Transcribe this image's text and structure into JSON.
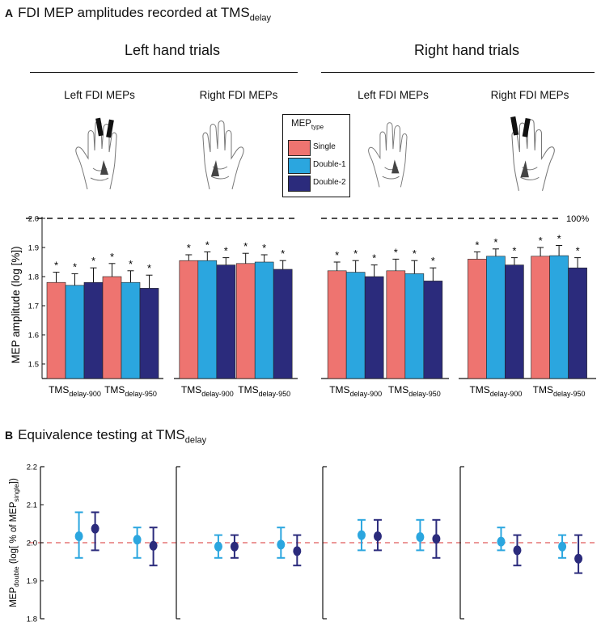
{
  "panelA": {
    "letter": "A",
    "title": "FDI MEP amplitudes recorded at TMS",
    "title_sub": "delay"
  },
  "panelB": {
    "letter": "B",
    "title": "Equivalence testing at TMS",
    "title_sub": "delay"
  },
  "groups": {
    "left": "Left hand trials",
    "right": "Right hand trials"
  },
  "subheads": [
    "Left FDI MEPs",
    "Right FDI MEPs",
    "Left FDI MEPs",
    "Right FDI MEPs"
  ],
  "hand_icons": [
    "left-hand-active-coil-icon",
    "right-hand-icon",
    "left-hand-icon",
    "right-hand-active-coil-icon"
  ],
  "legend": {
    "title": "MEP",
    "title_sub": "type",
    "items": [
      {
        "label": "Single",
        "color": "#ee7470"
      },
      {
        "label": "Double-1",
        "color": "#2ba6df"
      },
      {
        "label": "Double-2",
        "color": "#2b2b7c"
      }
    ]
  },
  "chart_data": [
    {
      "type": "bar",
      "title": "FDI MEP amplitudes recorded at TMS delay",
      "ylabel": "MEP amplitude (log [%])",
      "ylim": [
        1.45,
        2.0
      ],
      "yticks": [
        1.5,
        1.6,
        1.7,
        1.8,
        1.9,
        2.0
      ],
      "reference_line": {
        "value": 2.0,
        "label": "100%"
      },
      "significance_marker": "*",
      "series_names": [
        "Single",
        "Double-1",
        "Double-2"
      ],
      "category_labels": [
        {
          "main": "TMS",
          "sub": "delay-900"
        },
        {
          "main": "TMS",
          "sub": "delay-950"
        }
      ],
      "panels": [
        {
          "group": "Left hand trials",
          "mep": "Left FDI MEPs",
          "categories": [
            {
              "values": [
                1.78,
                1.77,
                1.78
              ],
              "errors": [
                0.035,
                0.04,
                0.05
              ]
            },
            {
              "values": [
                1.8,
                1.78,
                1.76
              ],
              "errors": [
                0.045,
                0.04,
                0.045
              ]
            }
          ]
        },
        {
          "group": "Left hand trials",
          "mep": "Right FDI MEPs",
          "categories": [
            {
              "values": [
                1.855,
                1.855,
                1.84
              ],
              "errors": [
                0.02,
                0.03,
                0.025
              ]
            },
            {
              "values": [
                1.845,
                1.85,
                1.825
              ],
              "errors": [
                0.035,
                0.025,
                0.03
              ]
            }
          ]
        },
        {
          "group": "Right hand trials",
          "mep": "Left FDI MEPs",
          "categories": [
            {
              "values": [
                1.82,
                1.815,
                1.8
              ],
              "errors": [
                0.03,
                0.04,
                0.04
              ]
            },
            {
              "values": [
                1.82,
                1.81,
                1.785
              ],
              "errors": [
                0.04,
                0.045,
                0.045
              ]
            }
          ]
        },
        {
          "group": "Right hand trials",
          "mep": "Right FDI MEPs",
          "categories": [
            {
              "values": [
                1.86,
                1.87,
                1.84
              ],
              "errors": [
                0.025,
                0.025,
                0.025
              ]
            },
            {
              "values": [
                1.87,
                1.872,
                1.83
              ],
              "errors": [
                0.03,
                0.035,
                0.035
              ]
            }
          ]
        }
      ]
    },
    {
      "type": "scatter",
      "title": "Equivalence testing at TMS delay",
      "ylabel_main": "MEP",
      "ylabel_sub": "double",
      "ylabel_rest": " (log[ % of MEP",
      "ylabel_sub2": "single",
      "ylabel_end": "])",
      "ylim": [
        1.8,
        2.2
      ],
      "yticks": [
        1.8,
        1.9,
        2.0,
        2.1,
        2.2
      ],
      "reference_line": {
        "value": 2.0,
        "style": "dashed red"
      },
      "series_names": [
        "Double-1",
        "Double-2"
      ],
      "panels": [
        {
          "points": [
            {
              "series": "Double-1",
              "cat": 0,
              "y": 2.017,
              "low": 1.96,
              "high": 2.08
            },
            {
              "series": "Double-2",
              "cat": 0,
              "y": 2.037,
              "low": 1.98,
              "high": 2.08
            },
            {
              "series": "Double-1",
              "cat": 1,
              "y": 2.008,
              "low": 1.96,
              "high": 2.04
            },
            {
              "series": "Double-2",
              "cat": 1,
              "y": 1.992,
              "low": 1.94,
              "high": 2.04
            }
          ]
        },
        {
          "points": [
            {
              "series": "Double-1",
              "cat": 0,
              "y": 1.99,
              "low": 1.96,
              "high": 2.02
            },
            {
              "series": "Double-2",
              "cat": 0,
              "y": 1.99,
              "low": 1.96,
              "high": 2.02
            },
            {
              "series": "Double-1",
              "cat": 1,
              "y": 1.995,
              "low": 1.96,
              "high": 2.04
            },
            {
              "series": "Double-2",
              "cat": 1,
              "y": 1.978,
              "low": 1.94,
              "high": 2.02
            }
          ]
        },
        {
          "points": [
            {
              "series": "Double-1",
              "cat": 0,
              "y": 2.02,
              "low": 1.98,
              "high": 2.06
            },
            {
              "series": "Double-2",
              "cat": 0,
              "y": 2.017,
              "low": 1.98,
              "high": 2.06
            },
            {
              "series": "Double-1",
              "cat": 1,
              "y": 2.015,
              "low": 1.98,
              "high": 2.06
            },
            {
              "series": "Double-2",
              "cat": 1,
              "y": 2.01,
              "low": 1.96,
              "high": 2.06
            }
          ]
        },
        {
          "points": [
            {
              "series": "Double-1",
              "cat": 0,
              "y": 2.003,
              "low": 1.98,
              "high": 2.04
            },
            {
              "series": "Double-2",
              "cat": 0,
              "y": 1.98,
              "low": 1.94,
              "high": 2.02
            },
            {
              "series": "Double-1",
              "cat": 1,
              "y": 1.99,
              "low": 1.96,
              "high": 2.02
            },
            {
              "series": "Double-2",
              "cat": 1,
              "y": 1.958,
              "low": 1.92,
              "high": 2.02
            }
          ]
        }
      ]
    }
  ]
}
